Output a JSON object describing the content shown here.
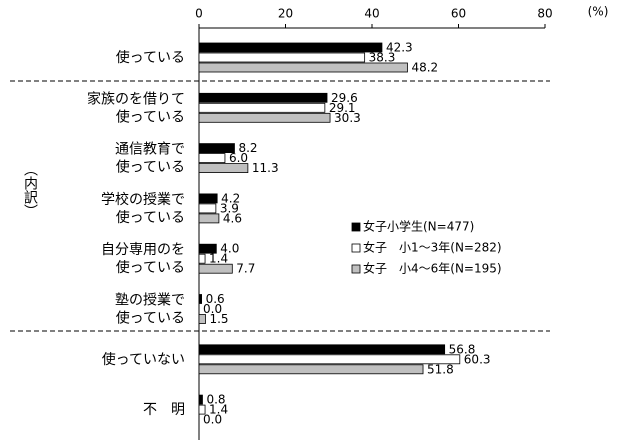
{
  "chart_data": {
    "type": "hbar",
    "unit_label": "(%)",
    "side_label": "（内訳）",
    "categories": [
      [
        "使っている"
      ],
      [
        "家族のを借りて",
        "使っている"
      ],
      [
        "通信教育で",
        "使っている"
      ],
      [
        "学校の授業で",
        "使っている"
      ],
      [
        "自分専用のを",
        "使っている"
      ],
      [
        "塾の授業で",
        "使っている"
      ],
      [
        "使っていない"
      ],
      [
        "不　明"
      ]
    ],
    "series": [
      {
        "name": "女子小学生(N=477)",
        "color": "#000000",
        "values": [
          42.3,
          29.6,
          8.2,
          4.2,
          4.0,
          0.6,
          56.8,
          0.8
        ],
        "value_labels": [
          "42.3",
          "29.6",
          "8.2",
          "4.2",
          "4.0",
          "0.6",
          "56.8",
          "0.8"
        ]
      },
      {
        "name": "女子　小1〜3年(N=282)",
        "color": "#ffffff",
        "values": [
          38.3,
          29.1,
          6.0,
          3.9,
          1.4,
          0.0,
          60.3,
          1.4
        ],
        "value_labels": [
          "38.3",
          "29.1",
          "6.0",
          "3.9",
          "1.4",
          "0.0",
          "60.3",
          "1.4"
        ]
      },
      {
        "name": "女子　小4〜6年(N=195)",
        "color": "#c0c0c0",
        "values": [
          48.2,
          30.3,
          11.3,
          4.6,
          7.7,
          1.5,
          51.8,
          0.0
        ],
        "value_labels": [
          "48.2",
          "30.3",
          "11.3",
          "4.6",
          "7.7",
          "1.5",
          "51.8",
          "0.0"
        ]
      }
    ],
    "xlim": [
      0,
      80
    ],
    "xticks": [
      0,
      20,
      40,
      60,
      80
    ],
    "grid": false
  }
}
